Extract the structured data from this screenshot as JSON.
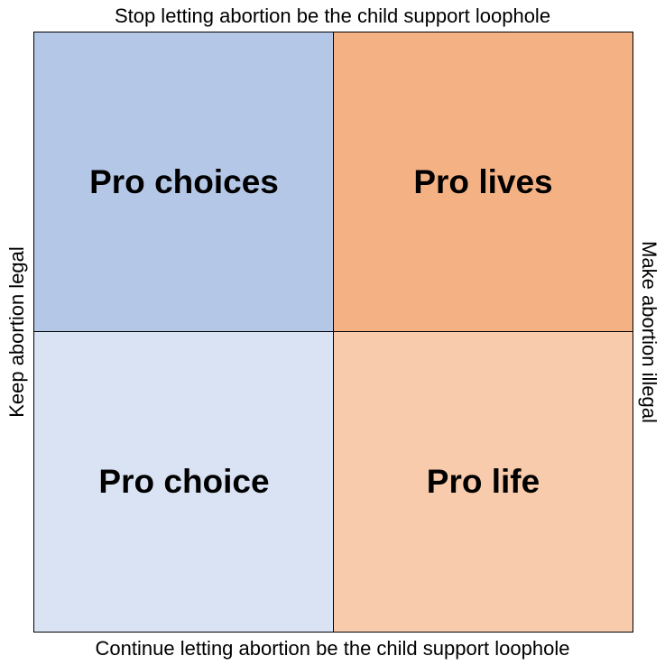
{
  "axes": {
    "top": "Stop letting abortion be the child support loophole",
    "bottom": "Continue letting abortion be the child support loophole",
    "left": "Keep abortion legal",
    "right": "Make abortion illegal"
  },
  "quadrants": [
    {
      "label": "Pro choices",
      "color": "#b4c7e7"
    },
    {
      "label": "Pro lives",
      "color": "#f4b183"
    },
    {
      "label": "Pro choice",
      "color": "#dae3f3"
    },
    {
      "label": "Pro life",
      "color": "#f8cbad"
    }
  ]
}
